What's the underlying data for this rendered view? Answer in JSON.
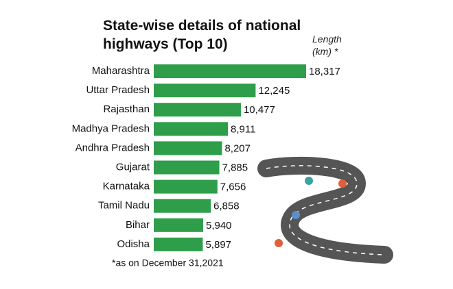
{
  "chart_data": {
    "type": "bar",
    "orientation": "horizontal",
    "title": "State-wise details of national highways (Top 10)",
    "value_axis_label": "Length (km) *",
    "categories": [
      "Maharashtra",
      "Uttar Pradesh",
      "Rajasthan",
      "Madhya Pradesh",
      "Andhra Pradesh",
      "Gujarat",
      "Karnataka",
      "Tamil Nadu",
      "Bihar",
      "Odisha"
    ],
    "values": [
      18317,
      12245,
      10477,
      8911,
      8207,
      7885,
      7656,
      6858,
      5940,
      5897
    ],
    "value_labels": [
      "18,317",
      "12,245",
      "10,477",
      "8,911",
      "8,207",
      "7,885",
      "7,656",
      "6,858",
      "5,940",
      "5,897"
    ],
    "color": "#2f9e4a",
    "footnote": "*as on December 31,2021"
  }
}
